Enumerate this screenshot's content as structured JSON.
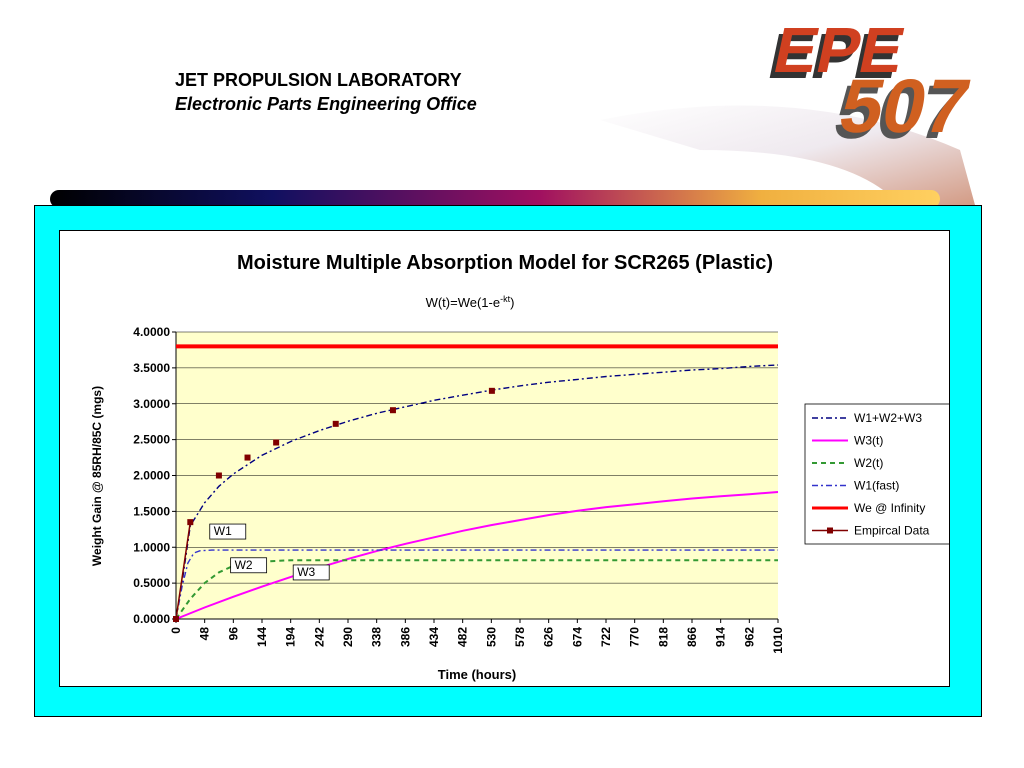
{
  "header": {
    "org_line1": "JET PROPULSION LABORATORY",
    "org_line2": "Electronic Parts Engineering Office"
  },
  "logo": {
    "line1": "EPE",
    "line2": "507"
  },
  "colors": {
    "panel_bg": "#00ffff",
    "plot_bg": "#ffffcc",
    "we_line": "#ff0000",
    "w3_line": "#ff00ff",
    "w2_line": "#339933",
    "w1_line": "#3333cc",
    "sum_line": "#000080",
    "data_marker": "#800000"
  },
  "chart_data": {
    "type": "line",
    "title": "Moisture Multiple Absorption Model for SCR265 (Plastic)",
    "subtitle_base": "W(t)=We(1-e",
    "subtitle_sup": "-kt",
    "subtitle_end": ")",
    "xlabel": "Time (hours)",
    "ylabel": "Weight Gain @ 85RH/85C (mgs)",
    "ylim": [
      0,
      4
    ],
    "xlim": [
      0,
      1010
    ],
    "yticks": [
      "0.0000",
      "0.5000",
      "1.0000",
      "1.5000",
      "2.0000",
      "2.5000",
      "3.0000",
      "3.5000",
      "4.0000"
    ],
    "xticks": [
      "0",
      "48",
      "96",
      "144",
      "194",
      "242",
      "290",
      "338",
      "386",
      "434",
      "482",
      "530",
      "578",
      "626",
      "674",
      "722",
      "770",
      "818",
      "866",
      "914",
      "962",
      "1010"
    ],
    "grid": true,
    "legend_position": "right",
    "legend": [
      "W1+W2+W3",
      "W3(t)",
      "W2(t)",
      "W1(fast)",
      "We @ Infinity",
      "Empircal Data"
    ],
    "series": [
      {
        "name": "W1+W2+W3",
        "x": [
          0,
          10,
          24,
          48,
          72,
          96,
          120,
          144,
          194,
          242,
          290,
          338,
          386,
          434,
          482,
          530,
          578,
          626,
          674,
          722,
          770,
          818,
          866,
          914,
          962,
          1010
        ],
        "y": [
          0,
          0.5,
          1.3,
          1.62,
          1.85,
          2.02,
          2.15,
          2.28,
          2.48,
          2.63,
          2.76,
          2.87,
          2.96,
          3.05,
          3.12,
          3.19,
          3.25,
          3.3,
          3.34,
          3.38,
          3.41,
          3.44,
          3.47,
          3.49,
          3.52,
          3.54
        ]
      },
      {
        "name": "W3(t)",
        "x": [
          0,
          48,
          96,
          144,
          194,
          242,
          290,
          338,
          386,
          434,
          482,
          530,
          578,
          626,
          674,
          722,
          770,
          818,
          866,
          914,
          962,
          1010
        ],
        "y": [
          0,
          0.16,
          0.31,
          0.45,
          0.59,
          0.72,
          0.84,
          0.95,
          1.05,
          1.14,
          1.23,
          1.31,
          1.38,
          1.45,
          1.51,
          1.56,
          1.6,
          1.64,
          1.68,
          1.71,
          1.74,
          1.77
        ]
      },
      {
        "name": "W2(t)",
        "x": [
          0,
          24,
          48,
          72,
          96,
          120,
          144,
          194,
          242,
          290,
          1010
        ],
        "y": [
          0,
          0.28,
          0.5,
          0.65,
          0.74,
          0.78,
          0.8,
          0.82,
          0.82,
          0.82,
          0.82
        ]
      },
      {
        "name": "W1(fast)",
        "x": [
          0,
          10,
          20,
          30,
          40,
          60,
          100,
          1010
        ],
        "y": [
          0,
          0.45,
          0.78,
          0.92,
          0.95,
          0.96,
          0.96,
          0.96
        ]
      },
      {
        "name": "We @ Infinity",
        "x": [
          0,
          1010
        ],
        "y": [
          3.8,
          3.8
        ]
      },
      {
        "name": "Empircal Data",
        "x": [
          0,
          24,
          72,
          120,
          168,
          268,
          364,
          530
        ],
        "y": [
          0,
          1.35,
          2.0,
          2.25,
          2.46,
          2.72,
          2.91,
          3.18
        ]
      }
    ],
    "annotations": [
      {
        "text": "W1",
        "x": 60,
        "y": 1.17
      },
      {
        "text": "W2",
        "x": 95,
        "y": 0.7
      },
      {
        "text": "W3",
        "x": 200,
        "y": 0.6
      }
    ]
  }
}
